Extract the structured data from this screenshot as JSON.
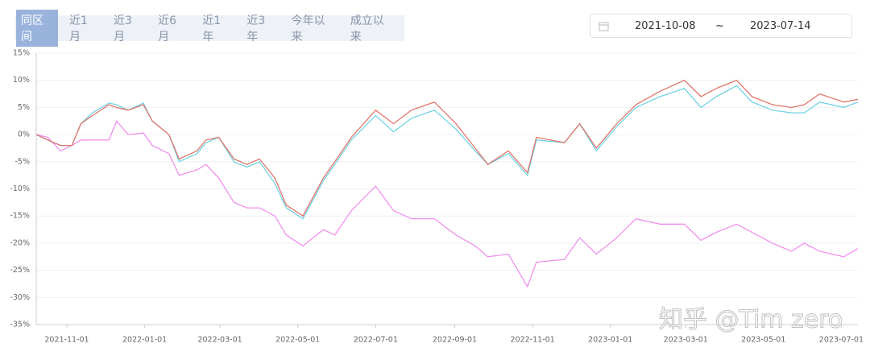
{
  "tabs": [
    "同区间",
    "近1月",
    "近3月",
    "近6月",
    "近1年",
    "近3年",
    "今年以来",
    "成立以来"
  ],
  "date_range": {
    "start": "2021-10-08",
    "separator": "~",
    "end": "2023-07-14"
  },
  "watermark": "知乎 @Tim zero",
  "chart_data": {
    "type": "line",
    "x": [
      "2021-10-08",
      "2021-10-17",
      "2021-10-27",
      "2021-11-05",
      "2021-11-12",
      "2021-11-21",
      "2021-12-04",
      "2021-12-10",
      "2021-12-19",
      "2021-12-31",
      "2022-01-07",
      "2022-01-20",
      "2022-01-28",
      "2022-02-11",
      "2022-02-18",
      "2022-02-28",
      "2022-03-12",
      "2022-03-22",
      "2022-04-01",
      "2022-04-13",
      "2022-04-22",
      "2022-05-05",
      "2022-05-21",
      "2022-05-30",
      "2022-06-12",
      "2022-07-01",
      "2022-07-15",
      "2022-07-29",
      "2022-08-16",
      "2022-09-02",
      "2022-09-17",
      "2022-09-27",
      "2022-10-13",
      "2022-10-28",
      "2022-11-04",
      "2022-11-26",
      "2022-12-08",
      "2022-12-21",
      "2023-01-06",
      "2023-01-21",
      "2023-02-09",
      "2023-02-28",
      "2023-03-13",
      "2023-03-25",
      "2023-04-10",
      "2023-04-22",
      "2023-05-08",
      "2023-05-23",
      "2023-06-02",
      "2023-06-14",
      "2023-07-03",
      "2023-07-14"
    ],
    "series": [
      {
        "color": "#e0766c",
        "values": [
          0,
          -1,
          -2,
          -2,
          2,
          3.5,
          5.5,
          5,
          4.5,
          5.5,
          2.5,
          0,
          -4.5,
          -3,
          -1,
          -0.5,
          -4.5,
          -5.5,
          -4.5,
          -8,
          -13,
          -15,
          -8,
          -5,
          -0.5,
          4.5,
          2,
          4.5,
          6,
          2,
          -2.5,
          -5.5,
          -3,
          -7,
          -0.5,
          -1.5,
          2,
          -2.5,
          2,
          5.5,
          8,
          10,
          7,
          8.5,
          10,
          7,
          5.5,
          5,
          5.5,
          7.5,
          6,
          6.5
        ]
      },
      {
        "color": "#72d3e6",
        "values": [
          0,
          -1,
          -2,
          -2,
          2,
          4,
          5.8,
          5.5,
          4.5,
          5.8,
          2.5,
          0,
          -5,
          -3.5,
          -1.5,
          -0.5,
          -5,
          -6,
          -5,
          -9,
          -13.5,
          -15.5,
          -8.5,
          -5.5,
          -1,
          3.5,
          0.5,
          3,
          4.5,
          1,
          -3,
          -5.5,
          -3.5,
          -7.5,
          -1,
          -1.5,
          2,
          -3,
          1.5,
          5,
          7,
          8.5,
          5,
          7,
          9,
          6,
          4.5,
          4,
          4,
          6,
          5,
          6
        ]
      },
      {
        "color": "#f190ee",
        "values": [
          0,
          -0.5,
          -3,
          -2,
          -1,
          -1,
          -1,
          2.5,
          0,
          0.3,
          -2,
          -3.5,
          -7.5,
          -6.5,
          -5.5,
          -8,
          -12.5,
          -13.5,
          -13.5,
          -15,
          -18.5,
          -20.5,
          -17.5,
          -18.5,
          -14,
          -9.5,
          -14,
          -15.5,
          -15.5,
          -18.5,
          -20.5,
          -22.5,
          -22,
          -28,
          -23.5,
          -23,
          -19,
          -22,
          -19,
          -15.5,
          -16.5,
          -16.5,
          -19.5,
          -18,
          -16.5,
          -18,
          -20,
          -21.5,
          -20,
          -21.5,
          -22.5,
          -21
        ]
      }
    ],
    "xlim": [
      "2021-10-08",
      "2023-07-14"
    ],
    "xticks": [
      "2021-11-01",
      "2022-01-01",
      "2022-03-01",
      "2022-05-01",
      "2022-07-01",
      "2022-09-01",
      "2022-11-01",
      "2023-01-01",
      "2023-03-01",
      "2023-05-01",
      "2023-07-01"
    ],
    "ylim": [
      -35,
      15
    ],
    "yticks": [
      {
        "value": -35,
        "label": "-35%"
      },
      {
        "value": -30,
        "label": "-30%"
      },
      {
        "value": -25,
        "label": "-25%"
      },
      {
        "value": -20,
        "label": "-20%"
      },
      {
        "value": -15,
        "label": "-15%"
      },
      {
        "value": -10,
        "label": "-10%"
      },
      {
        "value": -5,
        "label": "-5%"
      },
      {
        "value": 0,
        "label": "0%"
      },
      {
        "value": 5,
        "label": "5%"
      },
      {
        "value": 10,
        "label": "10%"
      },
      {
        "value": 15,
        "label": "15%"
      }
    ],
    "grid": true
  }
}
